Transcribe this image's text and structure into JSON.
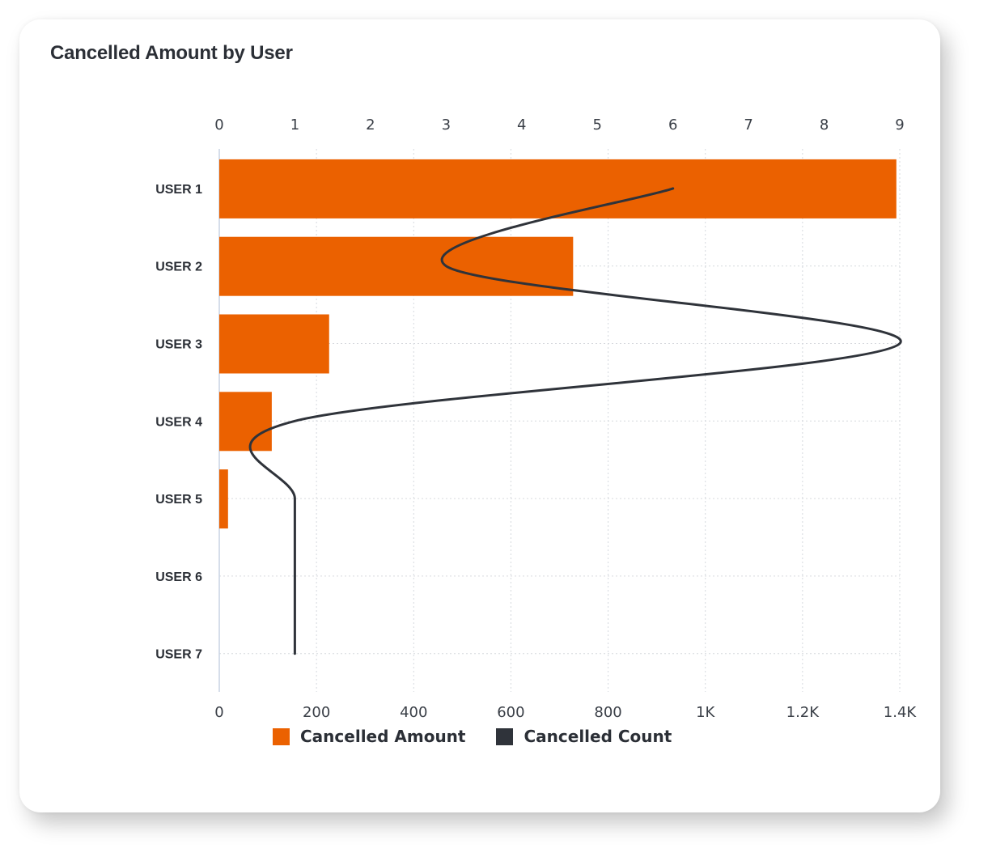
{
  "chart_title": "Cancelled Amount by User",
  "colors": {
    "amount": "#eb6100",
    "count": "#2f333a",
    "grid": "#d6d9de",
    "axis": "#c9d4e3"
  },
  "legend": {
    "amount_label": "Cancelled Amount",
    "count_label": "Cancelled Count"
  },
  "chart_data": {
    "type": "bar",
    "orientation": "horizontal",
    "title": "Cancelled Amount by User",
    "categories": [
      "USER 1",
      "USER 2",
      "USER 3",
      "USER 4",
      "USER 5",
      "USER 6",
      "USER 7"
    ],
    "series": [
      {
        "name": "Cancelled Amount",
        "type": "bar",
        "axis": "bottom",
        "values": [
          1393,
          728,
          226,
          108,
          18,
          0,
          0
        ]
      },
      {
        "name": "Cancelled Count",
        "type": "line",
        "axis": "top",
        "values": [
          6,
          3,
          9,
          1,
          1,
          1,
          1
        ]
      }
    ],
    "bottom_axis": {
      "range": [
        0,
        1400
      ],
      "ticks": [
        0,
        200,
        400,
        600,
        800,
        1000,
        1200,
        1400
      ],
      "tick_labels": [
        "0",
        "200",
        "400",
        "600",
        "800",
        "1K",
        "1.2K",
        "1.4K"
      ]
    },
    "top_axis": {
      "range": [
        0,
        9
      ],
      "ticks": [
        0,
        1,
        2,
        3,
        4,
        5,
        6,
        7,
        8,
        9
      ],
      "tick_labels": [
        "0",
        "1",
        "2",
        "3",
        "4",
        "5",
        "6",
        "7",
        "8",
        "9"
      ]
    },
    "grid": true,
    "legend_position": "bottom"
  }
}
